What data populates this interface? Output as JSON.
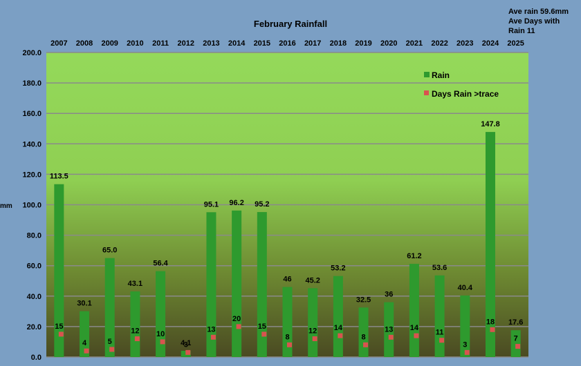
{
  "chart_data": {
    "type": "bar",
    "title": "February Rainfall",
    "ylabel": "mm",
    "xlabel": "",
    "ylim": [
      0,
      200
    ],
    "yticks": [
      "0.0",
      "20.0",
      "40.0",
      "60.0",
      "80.0",
      "100.0",
      "120.0",
      "140.0",
      "160.0",
      "180.0",
      "200.0"
    ],
    "categories": [
      "2007",
      "2008",
      "2009",
      "2010",
      "2011",
      "2012",
      "2013",
      "2014",
      "2015",
      "2016",
      "2017",
      "2018",
      "2019",
      "2020",
      "2021",
      "2022",
      "2023",
      "2024",
      "2025"
    ],
    "series": [
      {
        "name": "Rain",
        "values": [
          113.5,
          30.1,
          65.0,
          43.1,
          56.4,
          4.1,
          95.1,
          96.2,
          95.2,
          46,
          45.2,
          53.2,
          32.5,
          36,
          61.2,
          53.6,
          40.4,
          147.8,
          17.6
        ],
        "labels": [
          "113.5",
          "30.1",
          "65.0",
          "43.1",
          "56.4",
          "4.1",
          "95.1",
          "96.2",
          "95.2",
          "46",
          "45.2",
          "53.2",
          "32.5",
          "36",
          "61.2",
          "53.6",
          "40.4",
          "147.8",
          "17.6"
        ],
        "color": "#2e9a2e"
      },
      {
        "name": "Days Rain >trace",
        "values": [
          15,
          4,
          5,
          12,
          10,
          3,
          13,
          20,
          15,
          8,
          12,
          14,
          8,
          13,
          14,
          11,
          3,
          18,
          7
        ],
        "color": "#d9534f"
      }
    ],
    "legend_position": "top-right",
    "grid": true,
    "annotation": [
      "Ave rain 59.6mm",
      "Ave Days with",
      "Rain 11"
    ]
  }
}
